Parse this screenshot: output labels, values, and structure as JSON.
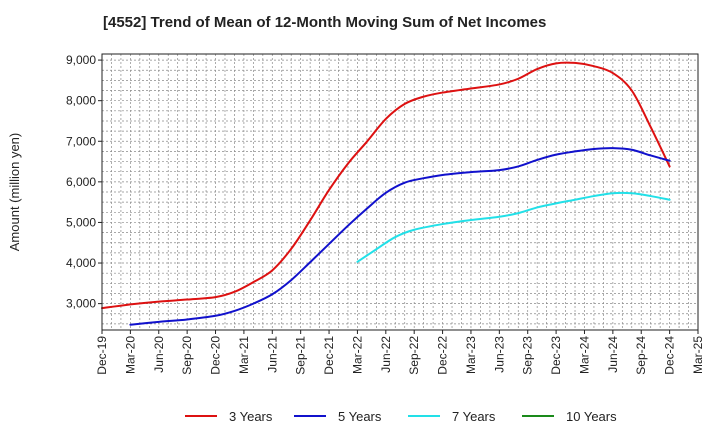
{
  "title": "[4552]  Trend of Mean of 12-Month Moving Sum of Net Incomes",
  "chart_data": {
    "type": "line",
    "title": "[4552]  Trend of Mean of 12-Month Moving Sum of Net Incomes",
    "xlabel": "",
    "ylabel": "Amount (million yen)",
    "x_tick_labels": [
      "Dec-19",
      "Mar-20",
      "Jun-20",
      "Sep-20",
      "Dec-20",
      "Mar-21",
      "Jun-21",
      "Sep-21",
      "Dec-21",
      "Mar-22",
      "Jun-22",
      "Sep-22",
      "Dec-22",
      "Mar-23",
      "Jun-23",
      "Sep-23",
      "Dec-23",
      "Mar-24",
      "Jun-24",
      "Sep-24",
      "Dec-24",
      "Mar-25"
    ],
    "y_tick_labels": [
      "3,000",
      "4,000",
      "5,000",
      "6,000",
      "7,000",
      "8,000",
      "9,000"
    ],
    "y_ticks": [
      3000,
      4000,
      5000,
      6000,
      7000,
      8000,
      9000
    ],
    "ylim": [
      2350,
      9150
    ],
    "grid": true,
    "legend_position": "bottom",
    "series": [
      {
        "name": "3 Years",
        "color": "#dd1111",
        "x": [
          "Dec-19",
          "Mar-20",
          "Jun-20",
          "Sep-20",
          "Dec-20",
          "Feb-21",
          "Apr-21",
          "Jun-21",
          "Aug-21",
          "Oct-21",
          "Dec-21",
          "Feb-22",
          "Apr-22",
          "Jun-22",
          "Aug-22",
          "Oct-22",
          "Dec-22",
          "Mar-23",
          "Jun-23",
          "Aug-23",
          "Oct-23",
          "Dec-23",
          "Feb-24",
          "Apr-24",
          "Jun-24",
          "Aug-24",
          "Oct-24",
          "Dec-24"
        ],
        "values": [
          2890,
          2980,
          3050,
          3100,
          3160,
          3290,
          3530,
          3820,
          4350,
          5050,
          5800,
          6450,
          6990,
          7550,
          7920,
          8100,
          8200,
          8300,
          8400,
          8540,
          8780,
          8920,
          8930,
          8850,
          8680,
          8250,
          7350,
          6380
        ]
      },
      {
        "name": "5 Years",
        "color": "#1111cc",
        "x": [
          "Mar-20",
          "Jun-20",
          "Sep-20",
          "Dec-20",
          "Feb-21",
          "Apr-21",
          "Jun-21",
          "Aug-21",
          "Oct-21",
          "Dec-21",
          "Feb-22",
          "Apr-22",
          "Jun-22",
          "Aug-22",
          "Oct-22",
          "Dec-22",
          "Mar-23",
          "Jun-23",
          "Aug-23",
          "Oct-23",
          "Dec-23",
          "Feb-24",
          "Apr-24",
          "Jun-24",
          "Aug-24",
          "Oct-24",
          "Dec-24"
        ],
        "values": [
          2480,
          2550,
          2610,
          2700,
          2820,
          3000,
          3230,
          3580,
          4020,
          4470,
          4920,
          5340,
          5730,
          5980,
          6090,
          6170,
          6240,
          6290,
          6380,
          6540,
          6670,
          6750,
          6810,
          6830,
          6790,
          6650,
          6520
        ]
      },
      {
        "name": "7 Years",
        "color": "#22e0e8",
        "x": [
          "Mar-22",
          "May-22",
          "Jul-22",
          "Sep-22",
          "Dec-22",
          "Mar-23",
          "Jun-23",
          "Aug-23",
          "Oct-23",
          "Dec-23",
          "Feb-24",
          "Apr-24",
          "Jun-24",
          "Aug-24",
          "Oct-24",
          "Dec-24"
        ],
        "values": [
          4030,
          4340,
          4640,
          4820,
          4960,
          5060,
          5140,
          5230,
          5370,
          5470,
          5560,
          5650,
          5720,
          5720,
          5650,
          5560
        ]
      },
      {
        "name": "10 Years",
        "color": "#1a8a1a",
        "x": [],
        "values": []
      }
    ]
  }
}
